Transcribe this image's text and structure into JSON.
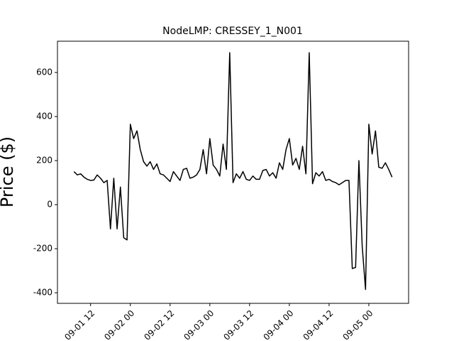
{
  "chart_data": {
    "type": "line",
    "title": "NodeLMP: CRESSEY_1_N001",
    "ylabel": "Price ($)",
    "x": [
      "09-01 07",
      "09-01 08",
      "09-01 09",
      "09-01 10",
      "09-01 11",
      "09-01 12",
      "09-01 13",
      "09-01 14",
      "09-01 15",
      "09-01 16",
      "09-01 17",
      "09-01 18",
      "09-01 19",
      "09-01 20",
      "09-01 21",
      "09-01 22",
      "09-01 23",
      "09-02 00",
      "09-02 01",
      "09-02 02",
      "09-02 03",
      "09-02 04",
      "09-02 05",
      "09-02 06",
      "09-02 07",
      "09-02 08",
      "09-02 09",
      "09-02 10",
      "09-02 11",
      "09-02 12",
      "09-02 13",
      "09-02 14",
      "09-02 15",
      "09-02 16",
      "09-02 17",
      "09-02 18",
      "09-02 19",
      "09-02 20",
      "09-02 21",
      "09-02 22",
      "09-02 23",
      "09-03 00",
      "09-03 01",
      "09-03 02",
      "09-03 03",
      "09-03 04",
      "09-03 05",
      "09-03 06",
      "09-03 07",
      "09-03 08",
      "09-03 09",
      "09-03 10",
      "09-03 11",
      "09-03 12",
      "09-03 13",
      "09-03 14",
      "09-03 15",
      "09-03 16",
      "09-03 17",
      "09-03 18",
      "09-03 19",
      "09-03 20",
      "09-03 21",
      "09-03 22",
      "09-03 23",
      "09-04 00",
      "09-04 01",
      "09-04 02",
      "09-04 03",
      "09-04 04",
      "09-04 05",
      "09-04 06",
      "09-04 07",
      "09-04 08",
      "09-04 09",
      "09-04 10",
      "09-04 11",
      "09-04 12",
      "09-04 13",
      "09-04 14",
      "09-04 15",
      "09-04 16",
      "09-04 17",
      "09-04 18",
      "09-04 19",
      "09-04 20",
      "09-04 21",
      "09-04 22",
      "09-04 23",
      "09-05 00",
      "09-05 01",
      "09-05 02",
      "09-05 03",
      "09-05 04",
      "09-05 05",
      "09-05 06",
      "09-05 07"
    ],
    "series": [
      {
        "name": "CRESSEY_1_N001",
        "color": "#000000",
        "values": [
          150,
          135,
          140,
          125,
          115,
          110,
          112,
          135,
          120,
          100,
          110,
          -110,
          120,
          -110,
          80,
          -150,
          -160,
          365,
          300,
          335,
          250,
          195,
          175,
          195,
          160,
          185,
          140,
          135,
          120,
          105,
          150,
          130,
          110,
          160,
          165,
          120,
          125,
          135,
          160,
          250,
          140,
          300,
          180,
          160,
          130,
          275,
          160,
          690,
          100,
          140,
          120,
          150,
          115,
          110,
          130,
          115,
          115,
          155,
          160,
          130,
          145,
          120,
          190,
          160,
          250,
          300,
          180,
          210,
          160,
          265,
          140,
          690,
          95,
          145,
          130,
          150,
          110,
          115,
          105,
          100,
          90,
          100,
          110,
          110,
          -290,
          -285,
          200,
          -190,
          -385,
          365,
          230,
          335,
          170,
          165,
          190,
          160,
          125
        ]
      }
    ],
    "xlim": [
      "09-01 02",
      "09-05 12"
    ],
    "xticks": [
      "09-01 12",
      "09-02 00",
      "09-02 12",
      "09-03 00",
      "09-03 12",
      "09-04 00",
      "09-04 12",
      "09-05 00"
    ],
    "ylim": [
      -448,
      742
    ],
    "yticks": [
      -400,
      -200,
      0,
      200,
      400,
      600
    ]
  }
}
